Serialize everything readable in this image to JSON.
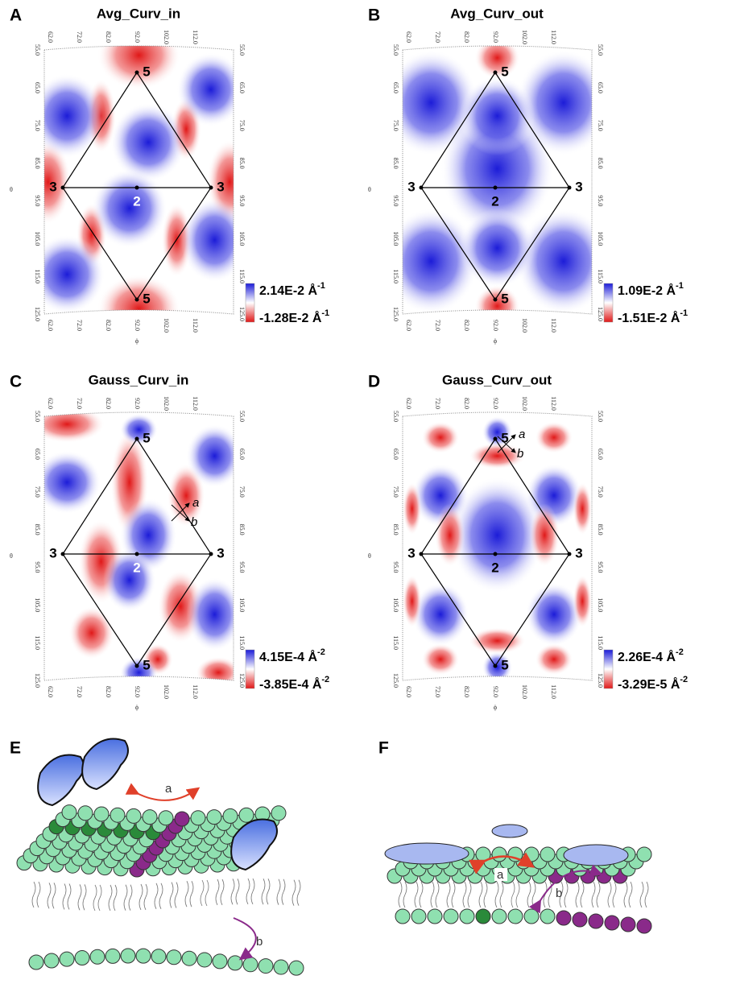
{
  "theta_ticks": [
    "55.0",
    "65.0",
    "75.0",
    "85.0",
    "95.0",
    "105.0",
    "115.0",
    "125.0"
  ],
  "phi_ticks": [
    "62.0",
    "72.0",
    "82.0",
    "92.0",
    "102.0",
    "112.0"
  ],
  "theta_label": "θ",
  "phi_label": "ϕ",
  "panels": [
    {
      "label": "A",
      "title": "Avg_Curv_in",
      "colorbar_max": "2.14E-2 Å",
      "colorbar_max_exp": "-1",
      "colorbar_min": "-1.28E-2 Å",
      "colorbar_min_exp": "-1",
      "vertices": [
        "5",
        "3",
        "2",
        "3",
        "5"
      ]
    },
    {
      "label": "B",
      "title": "Avg_Curv_out",
      "colorbar_max": "1.09E-2 Å",
      "colorbar_max_exp": "-1",
      "colorbar_min": "-1.51E-2 Å",
      "colorbar_min_exp": "-1",
      "vertices": [
        "5",
        "3",
        "2",
        "3",
        "5"
      ]
    },
    {
      "label": "C",
      "title": "Gauss_Curv_in",
      "colorbar_max": "4.15E-4 Å",
      "colorbar_max_exp": "-2",
      "colorbar_min": "-3.85E-4 Å",
      "colorbar_min_exp": "-2",
      "vertices": [
        "5",
        "3",
        "2",
        "3",
        "5"
      ],
      "annotations": [
        "a",
        "b"
      ]
    },
    {
      "label": "D",
      "title": "Gauss_Curv_out",
      "colorbar_max": "2.26E-4 Å",
      "colorbar_max_exp": "-2",
      "colorbar_min": "-3.29E-5 Å",
      "colorbar_min_exp": "-2",
      "vertices": [
        "5",
        "3",
        "2",
        "3",
        "5"
      ],
      "annotations": [
        "a",
        "b"
      ]
    }
  ],
  "illustrations": [
    {
      "label": "E",
      "annotations": [
        "a",
        "b"
      ]
    },
    {
      "label": "F",
      "annotations": [
        "a",
        "b"
      ]
    }
  ]
}
